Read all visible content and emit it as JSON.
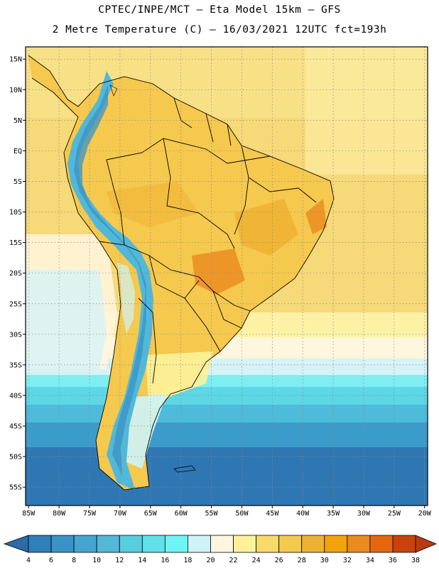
{
  "header": {
    "line1": "CPTEC/INPE/MCT –  Eta Model 15km – GFS",
    "line2": "2 Metre Temperature (C) – 16/03/2021 12UTC fct=193h"
  },
  "map": {
    "lat_labels": [
      "15N",
      "10N",
      "5N",
      "EQ",
      "5S",
      "10S",
      "15S",
      "20S",
      "25S",
      "30S",
      "35S",
      "40S",
      "45S",
      "50S",
      "55S"
    ],
    "lat_values": [
      15,
      10,
      5,
      0,
      -5,
      -10,
      -15,
      -20,
      -25,
      -30,
      -35,
      -40,
      -45,
      -50,
      -55
    ],
    "lon_labels": [
      "85W",
      "80W",
      "75W",
      "70W",
      "65W",
      "60W",
      "55W",
      "50W",
      "45W",
      "40W",
      "35W",
      "30W",
      "25W",
      "20W"
    ],
    "lon_values": [
      -85,
      -80,
      -75,
      -70,
      -65,
      -60,
      -55,
      -50,
      -45,
      -40,
      -35,
      -30,
      -25,
      -20
    ],
    "lat_range": [
      -58,
      17
    ],
    "lon_range": [
      -85.5,
      -19.5
    ]
  },
  "colorbar": {
    "labels": [
      "4",
      "6",
      "8",
      "10",
      "12",
      "14",
      "16",
      "18",
      "20",
      "22",
      "24",
      "26",
      "28",
      "30",
      "32",
      "34",
      "36",
      "38"
    ],
    "colors": [
      "#2c6ba8",
      "#2f7fb8",
      "#3a93c6",
      "#45a5d0",
      "#52b8d8",
      "#57cde0",
      "#60e0ea",
      "#6ff4f4",
      "#cdf3f7",
      "#fff6df",
      "#fdf29a",
      "#f8da6b",
      "#f5c84e",
      "#eeb232",
      "#f2a20b",
      "#eb8a1f",
      "#e5660d",
      "#c8420a",
      "#b83a12"
    ]
  }
}
